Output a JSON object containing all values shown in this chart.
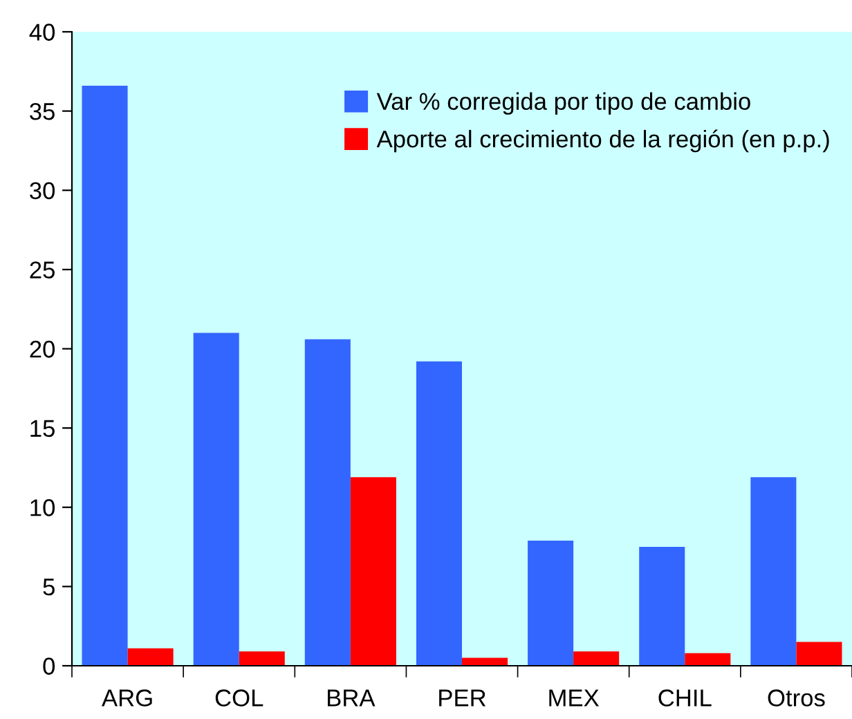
{
  "chart_data": {
    "type": "bar",
    "categories": [
      "ARG",
      "COL",
      "BRA",
      "PER",
      "MEX",
      "CHIL",
      "Otros"
    ],
    "series": [
      {
        "name": "Var % corregida por tipo de cambio",
        "color": "#3366ff",
        "values": [
          36.6,
          21.0,
          20.6,
          19.2,
          7.9,
          7.5,
          11.9
        ]
      },
      {
        "name": "Aporte al crecimiento de la región (en p.p.)",
        "color": "#ff0000",
        "values": [
          1.1,
          0.9,
          11.9,
          0.5,
          0.9,
          0.8,
          1.5
        ]
      }
    ],
    "ylim": [
      0,
      40
    ],
    "yticks": [
      0,
      5,
      10,
      15,
      20,
      25,
      30,
      35,
      40
    ],
    "grid": false,
    "legend": "top right"
  }
}
